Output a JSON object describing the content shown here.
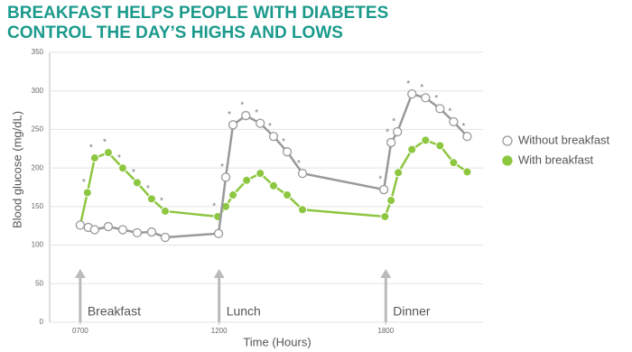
{
  "chart_data": {
    "type": "line",
    "title": [
      "BREAKFAST HELPS PEOPLE WITH DIABETES",
      "CONTROL THE DAY’S HIGHS AND LOWS"
    ],
    "x_label": "Time (Hours)",
    "y_label": "Blood glucose (mg/dL)",
    "xlim": [
      5.9,
      21.5
    ],
    "ylim": [
      0,
      350
    ],
    "xticks": [
      {
        "value": 7,
        "label": "0700"
      },
      {
        "value": 12,
        "label": "1200"
      },
      {
        "value": 18,
        "label": "1800"
      }
    ],
    "yticks": [
      0,
      50,
      100,
      150,
      200,
      250,
      300,
      350
    ],
    "grid": true,
    "legend": "right",
    "meals": [
      {
        "label": "Breakfast",
        "x": 7
      },
      {
        "label": "Lunch",
        "x": 12
      },
      {
        "label": "Dinner",
        "x": 18
      }
    ],
    "series": [
      {
        "name": "Without breakfast",
        "color": "#999999",
        "x": [
          7,
          7.29,
          7.52,
          8.01,
          8.53,
          9.05,
          9.57,
          10.06,
          11.98,
          12.24,
          12.5,
          12.96,
          13.48,
          13.96,
          14.45,
          15.0,
          17.93,
          18.19,
          18.42,
          18.94,
          19.43,
          19.95,
          20.44,
          20.93
        ],
        "values": [
          126,
          123,
          120,
          124,
          120,
          116,
          117,
          110,
          115,
          188,
          256,
          268,
          258,
          241,
          221,
          193,
          172,
          233,
          247,
          296,
          291,
          277,
          260,
          241
        ],
        "notes": [
          null,
          null,
          null,
          null,
          null,
          null,
          null,
          null,
          null,
          "*",
          "*",
          "*",
          "*",
          "*",
          "*",
          "*",
          "*",
          "*",
          "*",
          "*",
          "*",
          "*",
          "*",
          "*"
        ]
      },
      {
        "name": "With breakfast",
        "color": "#8dc63f",
        "x": [
          7,
          7.26,
          7.52,
          8.01,
          8.53,
          9.05,
          9.57,
          10.06,
          11.95,
          12.24,
          12.5,
          12.99,
          13.48,
          13.96,
          14.45,
          15.0,
          17.97,
          18.19,
          18.45,
          18.94,
          19.43,
          19.95,
          20.44,
          20.93
        ],
        "values": [
          126,
          168,
          213,
          220,
          200,
          181,
          160,
          144,
          137,
          150,
          165,
          184,
          193,
          177,
          165,
          146,
          137,
          158,
          194,
          224,
          236,
          229,
          207,
          195
        ],
        "notes": [
          null,
          "*",
          "*",
          "*",
          "*",
          "*",
          "*",
          "*",
          "*",
          null,
          null,
          null,
          null,
          null,
          null,
          null,
          null,
          null,
          null,
          null,
          null,
          null,
          null,
          null
        ]
      }
    ]
  }
}
